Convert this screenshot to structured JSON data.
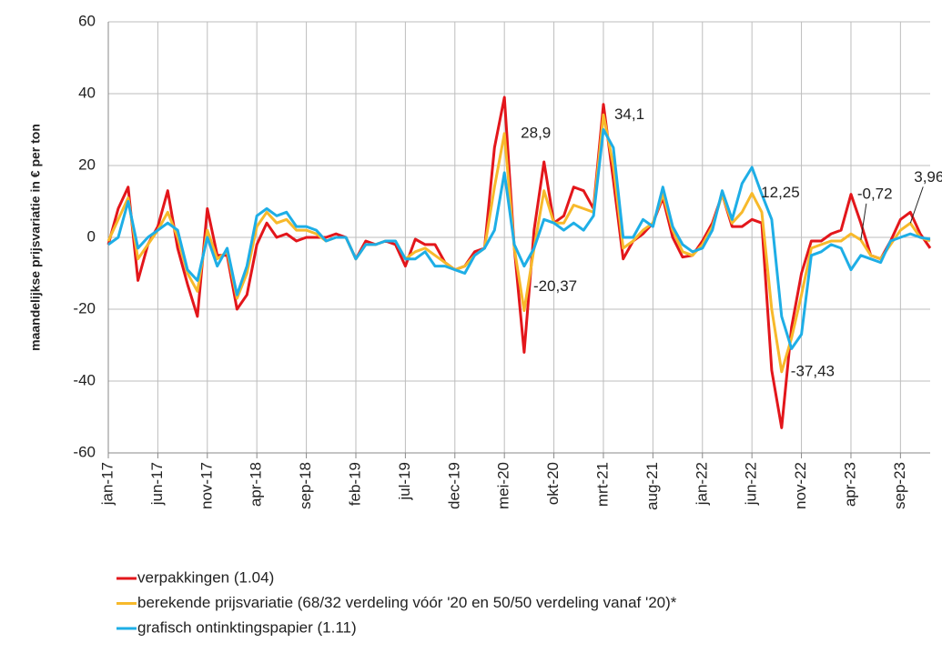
{
  "chart_data": {
    "type": "line",
    "y_label": "maandelijkse prijsvariatie in € per ton",
    "categories": [
      "jan-17",
      null,
      null,
      null,
      null,
      "jun-17",
      null,
      null,
      null,
      null,
      "nov-17",
      null,
      null,
      null,
      null,
      "apr-18",
      null,
      null,
      null,
      null,
      "sep-18",
      null,
      null,
      null,
      null,
      "feb-19",
      null,
      null,
      null,
      null,
      "jul-19",
      null,
      null,
      null,
      null,
      "dec-19",
      null,
      null,
      null,
      null,
      "mei-20",
      null,
      null,
      null,
      null,
      "okt-20",
      null,
      null,
      null,
      null,
      "mrt-21",
      null,
      null,
      null,
      null,
      "aug-21",
      null,
      null,
      null,
      null,
      "jan-22",
      null,
      null,
      null,
      null,
      "jun-22",
      null,
      null,
      null,
      null,
      "nov-22",
      null,
      null,
      null,
      null,
      "apr-23",
      null,
      null,
      null,
      null,
      "sep-23",
      null,
      null,
      null
    ],
    "series": [
      {
        "name": "verpakkingen (1.04)",
        "color": "#e3161b",
        "values": [
          -2,
          8,
          14,
          -12,
          -2,
          3,
          13,
          -3,
          -13,
          -22,
          8,
          -5,
          -5,
          -20,
          -16,
          -2,
          4,
          0,
          1,
          -1,
          0,
          0,
          0,
          1,
          0,
          -6,
          -1,
          -2,
          -1,
          -2,
          -8,
          -0.5,
          -2,
          -2,
          -7,
          -9,
          -8,
          -4,
          -3,
          25,
          39,
          -3,
          -32,
          2,
          21,
          4,
          6,
          14,
          13,
          8,
          37,
          16,
          -6,
          -1,
          1,
          4,
          11,
          0,
          -5.5,
          -5,
          -1,
          4,
          12,
          3,
          3,
          5,
          4,
          -37,
          -53,
          -25,
          -10,
          -1,
          -1,
          1,
          2,
          12,
          4,
          -5,
          -6,
          -1,
          5,
          7,
          1,
          -3
        ]
      },
      {
        "name": "berekende prijsvariatie (68/32 verdeling vóór '20 en 50/50 verdeling vanaf '20)*",
        "color": "#f7b92b",
        "values": [
          -1,
          5,
          11,
          -6,
          -2,
          2,
          7,
          0,
          -10,
          -15,
          2,
          -6,
          -4,
          -17,
          -10,
          3,
          7,
          4,
          5,
          2,
          2,
          1,
          -1,
          0,
          0,
          -6,
          -2,
          -2,
          -1,
          -1,
          -6,
          -4,
          -3,
          -5,
          -7,
          -9,
          -8,
          -5,
          -3,
          14,
          28.9,
          -3,
          -20.37,
          -3,
          13,
          4,
          4,
          9,
          8,
          7,
          34.1,
          20,
          -3,
          -1,
          2,
          4,
          12,
          2,
          -4,
          -5,
          -2,
          3,
          12,
          4,
          7,
          12.25,
          7,
          -20,
          -37.43,
          -28,
          -16,
          -3,
          -2,
          -1,
          -1,
          1,
          -0.72,
          -5,
          -6,
          -2,
          2,
          3.96,
          0,
          -1
        ],
        "value_labels": [
          null,
          null,
          null,
          null,
          null,
          null,
          null,
          null,
          null,
          null,
          null,
          null,
          null,
          null,
          null,
          null,
          null,
          null,
          null,
          null,
          null,
          null,
          null,
          null,
          null,
          null,
          null,
          null,
          null,
          null,
          null,
          null,
          null,
          null,
          null,
          null,
          null,
          null,
          null,
          null,
          "28,9",
          null,
          "-20,37",
          null,
          null,
          null,
          null,
          null,
          null,
          null,
          "34,1",
          null,
          null,
          null,
          null,
          null,
          null,
          null,
          null,
          null,
          null,
          null,
          null,
          null,
          null,
          "12,25",
          null,
          null,
          "-37,43",
          null,
          null,
          null,
          null,
          null,
          null,
          null,
          "-0,72",
          null,
          null,
          null,
          null,
          "3,96",
          null,
          null
        ]
      },
      {
        "name": "grafisch ontinktingspapier (1.11)",
        "color": "#1eaee6",
        "values": [
          -2,
          0,
          10,
          -3,
          0,
          2,
          4,
          2,
          -9,
          -12,
          0,
          -8,
          -3,
          -16,
          -8,
          6,
          8,
          6,
          7,
          3,
          3,
          2,
          -1,
          0,
          0,
          -6,
          -2,
          -2,
          -1,
          -1,
          -6,
          -6,
          -4,
          -8,
          -8,
          -9,
          -10,
          -5,
          -3,
          2,
          18,
          -2,
          -8,
          -3,
          5,
          4,
          2,
          4,
          2,
          6,
          30,
          25,
          0,
          0,
          5,
          3,
          14,
          3,
          -2,
          -4,
          -3,
          2,
          13,
          5,
          15,
          19.5,
          12,
          5,
          -22,
          -31,
          -27,
          -5,
          -4,
          -2,
          -3,
          -9,
          -5,
          -6,
          -7,
          -1,
          0,
          1,
          0,
          -0.5
        ]
      }
    ],
    "ylim": [
      -60,
      60
    ],
    "yticks": [
      -60,
      -40,
      -20,
      0,
      20,
      40,
      60
    ],
    "grid": true
  }
}
